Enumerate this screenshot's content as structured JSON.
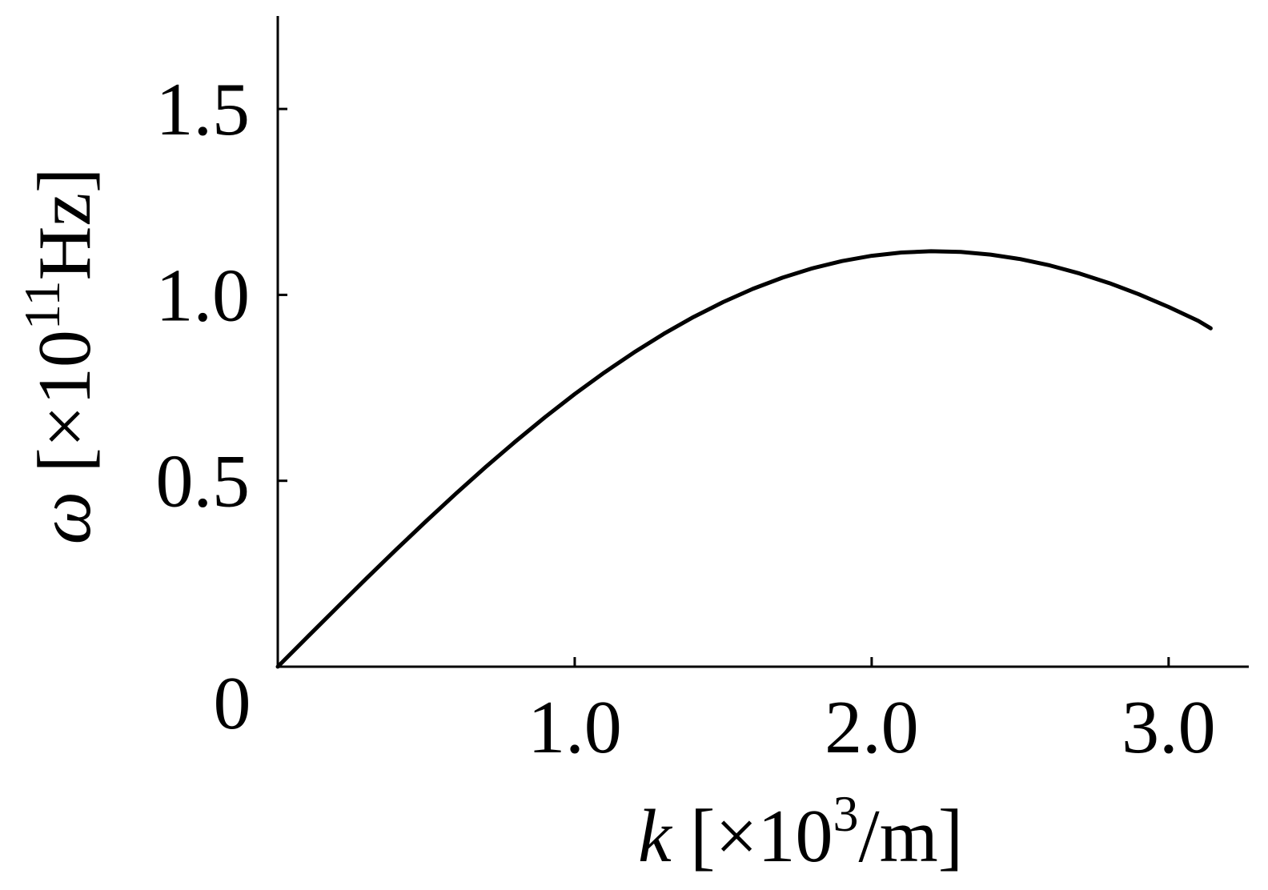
{
  "chart_data": {
    "type": "line",
    "xlabel": {
      "symbol": "k",
      "prefix": " [×10",
      "exponent": "3",
      "suffix": "/m]"
    },
    "ylabel": {
      "symbol": "ω",
      "prefix": " [×10",
      "exponent": "11",
      "suffix": "Hz]"
    },
    "xlim": [
      0,
      3.27
    ],
    "ylim": [
      0,
      1.75
    ],
    "xticks": [
      {
        "value": 1.0,
        "label": "1.0"
      },
      {
        "value": 2.0,
        "label": "2.0"
      },
      {
        "value": 3.0,
        "label": "3.0"
      }
    ],
    "yticks": [
      {
        "value": 0.5,
        "label": "0.5"
      },
      {
        "value": 1.0,
        "label": "1.0"
      },
      {
        "value": 1.5,
        "label": "1.5"
      }
    ],
    "origin_label": "0",
    "grid": false,
    "legend": "none",
    "line_color": "#000000",
    "series": [
      {
        "x": [
          0,
          0.1,
          0.2,
          0.3,
          0.4,
          0.5,
          0.6,
          0.7,
          0.8,
          0.9,
          1.0,
          1.1,
          1.2,
          1.3,
          1.4,
          1.5,
          1.6,
          1.7,
          1.8,
          1.9,
          2.0,
          2.1,
          2.2,
          2.3,
          2.4,
          2.5,
          2.6,
          2.7,
          2.8,
          2.9,
          3.0,
          3.1,
          3.1416
        ],
        "y": [
          0,
          0.08,
          0.1596,
          0.2384,
          0.3159,
          0.3917,
          0.4656,
          0.537,
          0.6056,
          0.6711,
          0.7331,
          0.7913,
          0.8454,
          0.8952,
          0.9404,
          0.9807,
          1.0161,
          1.0463,
          1.0713,
          1.0909,
          1.1051,
          1.1139,
          1.1173,
          1.1154,
          1.1083,
          1.0962,
          1.0792,
          1.0576,
          1.0316,
          1.0015,
          0.9676,
          0.9302,
          0.91
        ]
      }
    ]
  }
}
